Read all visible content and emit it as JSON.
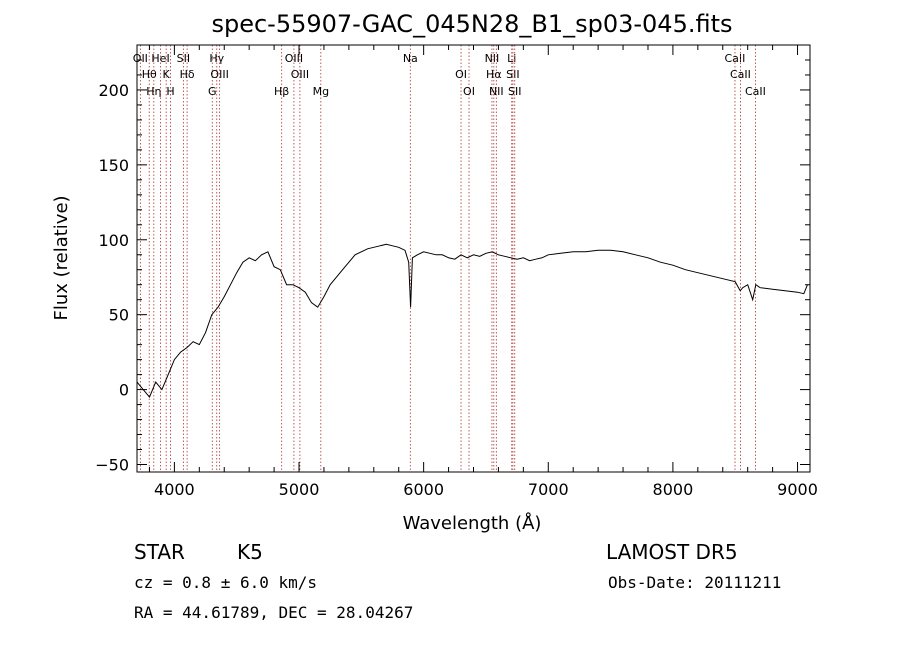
{
  "chart_data": {
    "type": "line",
    "title": "spec-55907-GAC_045N28_B1_sp03-045.fits",
    "xlabel": "Wavelength (Å)",
    "ylabel": "Flux (relative)",
    "xlim": [
      3700,
      9100
    ],
    "ylim": [
      -55,
      230
    ],
    "xticks": [
      4000,
      5000,
      6000,
      7000,
      8000,
      9000
    ],
    "yticks": [
      -50,
      0,
      50,
      100,
      150,
      200
    ],
    "grid": false,
    "series": [
      {
        "x": [
          3700,
          3750,
          3800,
          3850,
          3900,
          3950,
          4000,
          4050,
          4100,
          4150,
          4200,
          4250,
          4300,
          4350,
          4400,
          4450,
          4500,
          4550,
          4600,
          4650,
          4700,
          4750,
          4800,
          4850,
          4900,
          4950,
          5000,
          5050,
          5100,
          5150,
          5200,
          5250,
          5300,
          5350,
          5400,
          5450,
          5500,
          5550,
          5600,
          5650,
          5700,
          5750,
          5800,
          5850,
          5880,
          5895,
          5910,
          5950,
          6000,
          6050,
          6100,
          6150,
          6200,
          6250,
          6300,
          6350,
          6400,
          6450,
          6500,
          6550,
          6600,
          6650,
          6700,
          6750,
          6800,
          6850,
          6900,
          6950,
          7000,
          7100,
          7200,
          7300,
          7400,
          7500,
          7600,
          7700,
          7800,
          7900,
          8000,
          8100,
          8200,
          8300,
          8400,
          8500,
          8540,
          8560,
          8600,
          8640,
          8665,
          8700,
          8800,
          8900,
          9000,
          9050,
          9080
        ],
        "y": [
          5,
          0,
          -5,
          5,
          0,
          10,
          20,
          25,
          28,
          32,
          30,
          38,
          50,
          55,
          62,
          70,
          78,
          85,
          88,
          86,
          90,
          92,
          82,
          80,
          70,
          70,
          68,
          65,
          58,
          55,
          62,
          70,
          75,
          80,
          85,
          90,
          92,
          94,
          95,
          96,
          97,
          96,
          95,
          93,
          85,
          55,
          88,
          90,
          92,
          91,
          90,
          90,
          88,
          87,
          90,
          88,
          90,
          89,
          91,
          92,
          90,
          89,
          88,
          87,
          88,
          86,
          87,
          88,
          90,
          91,
          92,
          92,
          93,
          93,
          92,
          90,
          88,
          85,
          83,
          80,
          78,
          76,
          74,
          72,
          66,
          68,
          70,
          60,
          70,
          68,
          67,
          66,
          65,
          64,
          70
        ]
      }
    ],
    "lines": [
      {
        "x": 3727,
        "label": "OII"
      },
      {
        "x": 3798,
        "label": "Hθ"
      },
      {
        "x": 3835,
        "label": "Hη"
      },
      {
        "x": 3889,
        "label": "HeI"
      },
      {
        "x": 3934,
        "label": "K"
      },
      {
        "x": 3969,
        "label": "H"
      },
      {
        "x": 4072,
        "label": "SII"
      },
      {
        "x": 4102,
        "label": "Hδ"
      },
      {
        "x": 4304,
        "label": "G"
      },
      {
        "x": 4340,
        "label": "Hγ"
      },
      {
        "x": 4363,
        "label": "OIII"
      },
      {
        "x": 4861,
        "label": "Hβ"
      },
      {
        "x": 4959,
        "label": "OIII"
      },
      {
        "x": 5007,
        "label": "OIII"
      },
      {
        "x": 5175,
        "label": "Mg"
      },
      {
        "x": 5893,
        "label": "Na"
      },
      {
        "x": 6300,
        "label": "OI"
      },
      {
        "x": 6364,
        "label": "OI"
      },
      {
        "x": 6548,
        "label": "NII"
      },
      {
        "x": 6563,
        "label": "Hα"
      },
      {
        "x": 6583,
        "label": "NII"
      },
      {
        "x": 6707,
        "label": "Li"
      },
      {
        "x": 6716,
        "label": "SII"
      },
      {
        "x": 6731,
        "label": "SII"
      },
      {
        "x": 8498,
        "label": "CaII"
      },
      {
        "x": 8542,
        "label": "CaII"
      },
      {
        "x": 8662,
        "label": "CaII"
      }
    ]
  },
  "info": {
    "obj_class": "STAR",
    "subclass": "K5",
    "release": "LAMOST  DR5",
    "cz": "cz = 0.8 ± 6.0 km/s",
    "obs_date": "Obs-Date: 20111211",
    "coords": "RA =  44.61789, DEC =  28.04267"
  }
}
